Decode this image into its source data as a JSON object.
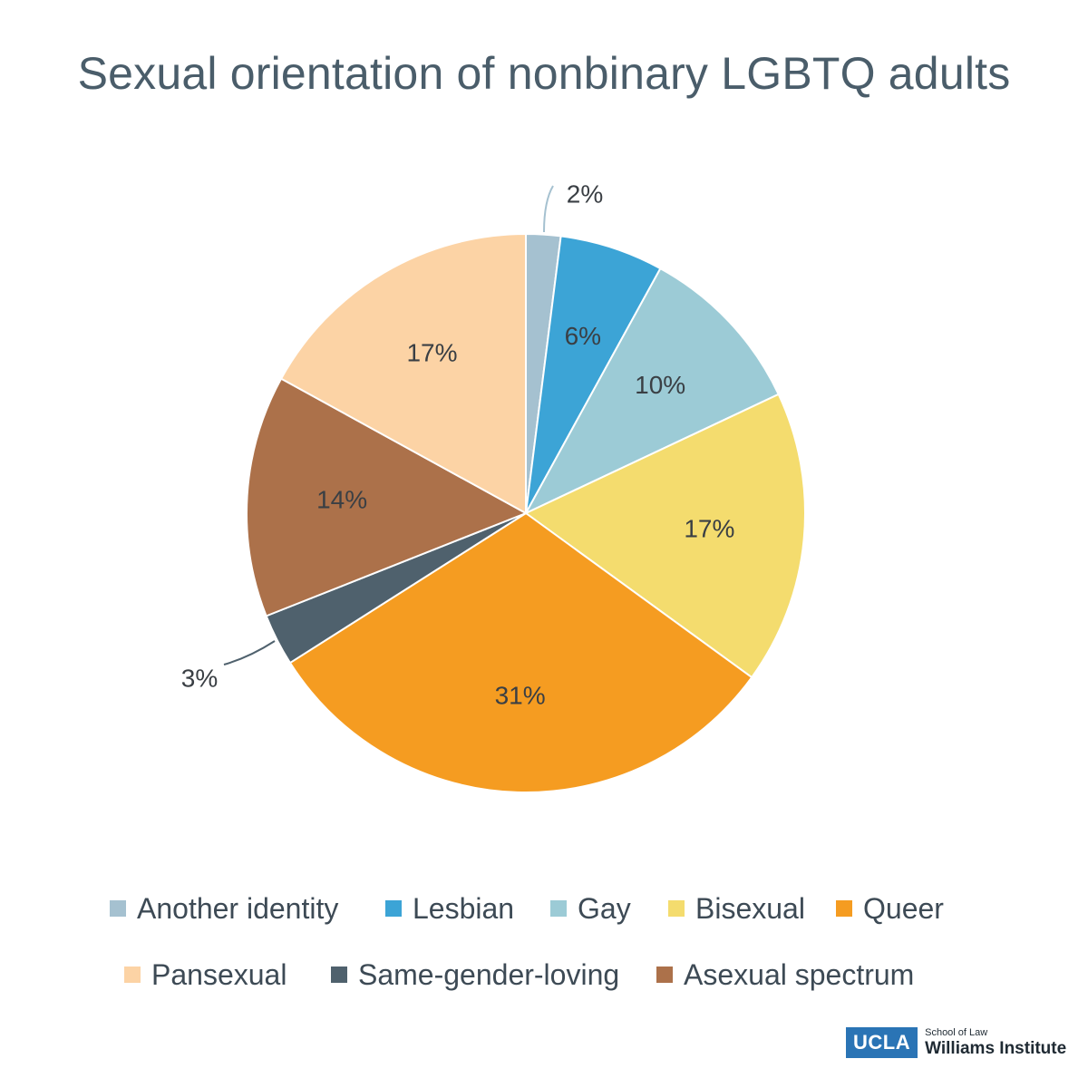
{
  "title": "Sexual orientation of nonbinary LGBTQ adults",
  "chart_data": {
    "type": "pie",
    "title": "Sexual orientation of nonbinary LGBTQ adults",
    "slices": [
      {
        "label": "Another identity",
        "value": 2,
        "value_label": "2%",
        "color": "#a5c1d0"
      },
      {
        "label": "Lesbian",
        "value": 6,
        "value_label": "6%",
        "color": "#3ca4d6"
      },
      {
        "label": "Gay",
        "value": 10,
        "value_label": "10%",
        "color": "#9ccbd6"
      },
      {
        "label": "Bisexual",
        "value": 17,
        "value_label": "17%",
        "color": "#f4dc6e"
      },
      {
        "label": "Queer",
        "value": 31,
        "value_label": "31%",
        "color": "#f59c21"
      },
      {
        "label": "Same-gender-loving",
        "value": 3,
        "value_label": "3%",
        "color": "#4f616d"
      },
      {
        "label": "Asexual spectrum",
        "value": 14,
        "value_label": "14%",
        "color": "#ac714a"
      },
      {
        "label": "Pansexual",
        "value": 17,
        "value_label": "17%",
        "color": "#fcd3a5"
      }
    ],
    "legend_order": [
      "Another identity",
      "Lesbian",
      "Gay",
      "Bisexual",
      "Queer",
      "Pansexual",
      "Same-gender-loving",
      "Asexual spectrum"
    ],
    "legend_position": "bottom"
  },
  "logo": {
    "badge": "UCLA",
    "line1": "School of Law",
    "line2": "Williams Institute"
  }
}
